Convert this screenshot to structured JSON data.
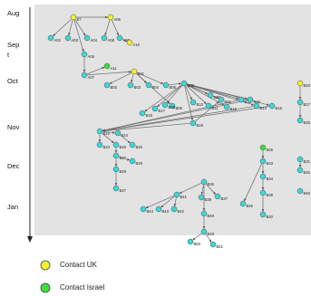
{
  "timeline": {
    "months": [
      "Aug",
      "Sep\nt",
      "Oct",
      "Nov",
      "Dec",
      "Jan"
    ]
  },
  "colors": {
    "panel_bg": "#e3e3e3",
    "node_default": "#3fd6d6",
    "node_uk": "#f5f030",
    "node_israel": "#3ce13c",
    "edge": "#6a6a6a"
  },
  "legend": {
    "items": [
      {
        "label": "Contact UK",
        "color": "#f5f030"
      },
      {
        "label": "Contact Israel",
        "color": "#3ce13c"
      }
    ]
  },
  "nodes": [
    {
      "id": "B7",
      "label": "B7",
      "type": "uk"
    },
    {
      "id": "A06",
      "label": "A06",
      "type": "uk"
    },
    {
      "id": "A02",
      "label": "A02",
      "type": "default"
    },
    {
      "id": "A03",
      "label": "A03",
      "type": "default"
    },
    {
      "id": "A04",
      "label": "A04",
      "type": "default"
    },
    {
      "id": "A08",
      "label": "A08",
      "type": "default"
    },
    {
      "id": "A09",
      "label": "A09",
      "type": "default"
    },
    {
      "id": "A10",
      "label": "A10",
      "type": "uk"
    },
    {
      "id": "A05",
      "label": "A05",
      "type": "default"
    },
    {
      "id": "A11",
      "label": "A11",
      "type": "israel"
    },
    {
      "id": "A07",
      "label": "A07",
      "type": "default"
    },
    {
      "id": "B01",
      "label": "B01",
      "type": "uk"
    },
    {
      "id": "B02",
      "label": "B02",
      "type": "default"
    },
    {
      "id": "B03",
      "label": "B03",
      "type": "default"
    },
    {
      "id": "B04",
      "label": "B04",
      "type": "default"
    },
    {
      "id": "B05",
      "label": "B05",
      "type": "default"
    },
    {
      "id": "B06",
      "label": "B06",
      "type": "default"
    },
    {
      "id": "B17",
      "label": "B17",
      "type": "default"
    },
    {
      "id": "B18",
      "label": "B18",
      "type": "default"
    },
    {
      "id": "B08",
      "label": "B08",
      "type": "default"
    },
    {
      "id": "B09",
      "label": "B09",
      "type": "default"
    },
    {
      "id": "B10",
      "label": "B10",
      "type": "default"
    },
    {
      "id": "B11",
      "label": "B11",
      "type": "default"
    },
    {
      "id": "B12",
      "label": "B12",
      "type": "default"
    },
    {
      "id": "B13",
      "label": "B13",
      "type": "default"
    },
    {
      "id": "B14",
      "label": "B14",
      "type": "default"
    },
    {
      "id": "B15",
      "label": "B15",
      "type": "default"
    },
    {
      "id": "B16",
      "label": "B16",
      "type": "default"
    },
    {
      "id": "B19",
      "label": "B19",
      "type": "default"
    },
    {
      "id": "B20",
      "label": "B20",
      "type": "default"
    },
    {
      "id": "B21",
      "label": "B21",
      "type": "default"
    },
    {
      "id": "B22",
      "label": "B22",
      "type": "default"
    },
    {
      "id": "B23",
      "label": "B23",
      "type": "default"
    },
    {
      "id": "B24",
      "label": "B24",
      "type": "default"
    },
    {
      "id": "B25",
      "label": "B25",
      "type": "default"
    },
    {
      "id": "B26",
      "label": "B26",
      "type": "default"
    },
    {
      "id": "B27",
      "label": "B27",
      "type": "default"
    },
    {
      "id": "B28",
      "label": "B28",
      "type": "default"
    },
    {
      "id": "B29",
      "label": "B29",
      "type": "default"
    },
    {
      "id": "B47",
      "label": "B47",
      "type": "default"
    },
    {
      "id": "B35",
      "label": "B35",
      "type": "israel"
    },
    {
      "id": "B33",
      "label": "B33",
      "type": "default"
    },
    {
      "id": "B34",
      "label": "B34",
      "type": "default"
    },
    {
      "id": "B39",
      "label": "B39",
      "type": "default"
    },
    {
      "id": "B40",
      "label": "B40",
      "type": "default"
    },
    {
      "id": "B45",
      "label": "B45",
      "type": "default"
    },
    {
      "id": "B36",
      "label": "B36",
      "type": "default"
    },
    {
      "id": "B37",
      "label": "B37",
      "type": "default"
    },
    {
      "id": "B38",
      "label": "B38",
      "type": "default"
    },
    {
      "id": "B41",
      "label": "B41",
      "type": "default"
    },
    {
      "id": "B42",
      "label": "B42",
      "type": "default"
    },
    {
      "id": "B43",
      "label": "B43",
      "type": "default"
    },
    {
      "id": "B44",
      "label": "B44",
      "type": "default"
    },
    {
      "id": "B46",
      "label": "B46",
      "type": "default"
    },
    {
      "id": "B48",
      "label": "B48",
      "type": "default"
    },
    {
      "id": "B49",
      "label": "B49",
      "type": "default"
    },
    {
      "id": "B50",
      "label": "B50",
      "type": "default"
    },
    {
      "id": "B51",
      "label": "B51",
      "type": "default"
    },
    {
      "id": "B26R",
      "label": "B26",
      "type": "uk"
    },
    {
      "id": "B27R",
      "label": "B27",
      "type": "default"
    },
    {
      "id": "B30",
      "label": "B30",
      "type": "default"
    },
    {
      "id": "B31",
      "label": "B31",
      "type": "default"
    },
    {
      "id": "B32",
      "label": "B32",
      "type": "default"
    },
    {
      "id": "B46R",
      "label": "B46",
      "type": "default"
    }
  ],
  "edges": [
    [
      "B7",
      "A02"
    ],
    [
      "B7",
      "A03"
    ],
    [
      "B7",
      "A04"
    ],
    [
      "B7",
      "A06"
    ],
    [
      "B7",
      "A05"
    ],
    [
      "A06",
      "A08"
    ],
    [
      "A06",
      "A09"
    ],
    [
      "A09",
      "A10"
    ],
    [
      "A05",
      "A07"
    ],
    [
      "A07",
      "A11"
    ],
    [
      "A07",
      "B01"
    ],
    [
      "B01",
      "B02"
    ],
    [
      "B01",
      "B03"
    ],
    [
      "B01",
      "B04"
    ],
    [
      "B01",
      "B05"
    ],
    [
      "B01",
      "B06"
    ],
    [
      "B05",
      "B09"
    ],
    [
      "B09",
      "B17"
    ],
    [
      "B09",
      "B18"
    ],
    [
      "B09",
      "B08"
    ],
    [
      "B09",
      "B10"
    ],
    [
      "B09",
      "B11"
    ],
    [
      "B09",
      "B12"
    ],
    [
      "B09",
      "B13"
    ],
    [
      "B09",
      "B14"
    ],
    [
      "B09",
      "B15"
    ],
    [
      "B09",
      "B16"
    ],
    [
      "B09",
      "B19"
    ],
    [
      "B09",
      "B20"
    ],
    [
      "B09",
      "B21"
    ],
    [
      "B19",
      "B22"
    ],
    [
      "B19",
      "B21"
    ],
    [
      "B16",
      "B22"
    ],
    [
      "B15",
      "B22"
    ],
    [
      "B14",
      "B22"
    ],
    [
      "B13",
      "B22"
    ],
    [
      "B22",
      "B23"
    ],
    [
      "B22",
      "B24"
    ],
    [
      "B22",
      "B26"
    ],
    [
      "B24",
      "B25"
    ],
    [
      "B26",
      "B27"
    ],
    [
      "B27",
      "B28"
    ],
    [
      "B27",
      "B29"
    ],
    [
      "B28",
      "B47"
    ],
    [
      "B35",
      "B33"
    ],
    [
      "B33",
      "B34"
    ],
    [
      "B34",
      "B39"
    ],
    [
      "B39",
      "B40"
    ],
    [
      "B33",
      "B45"
    ],
    [
      "B36",
      "B37"
    ],
    [
      "B36",
      "B38"
    ],
    [
      "B36",
      "B41"
    ],
    [
      "B36",
      "B49"
    ],
    [
      "B41",
      "B42"
    ],
    [
      "B41",
      "B43"
    ],
    [
      "B41",
      "B44"
    ],
    [
      "B49",
      "B48"
    ],
    [
      "B48",
      "B50"
    ],
    [
      "B48",
      "B51"
    ],
    [
      "B26R",
      "B27R"
    ],
    [
      "B27R",
      "B30"
    ],
    [
      "B31",
      "B32"
    ]
  ]
}
